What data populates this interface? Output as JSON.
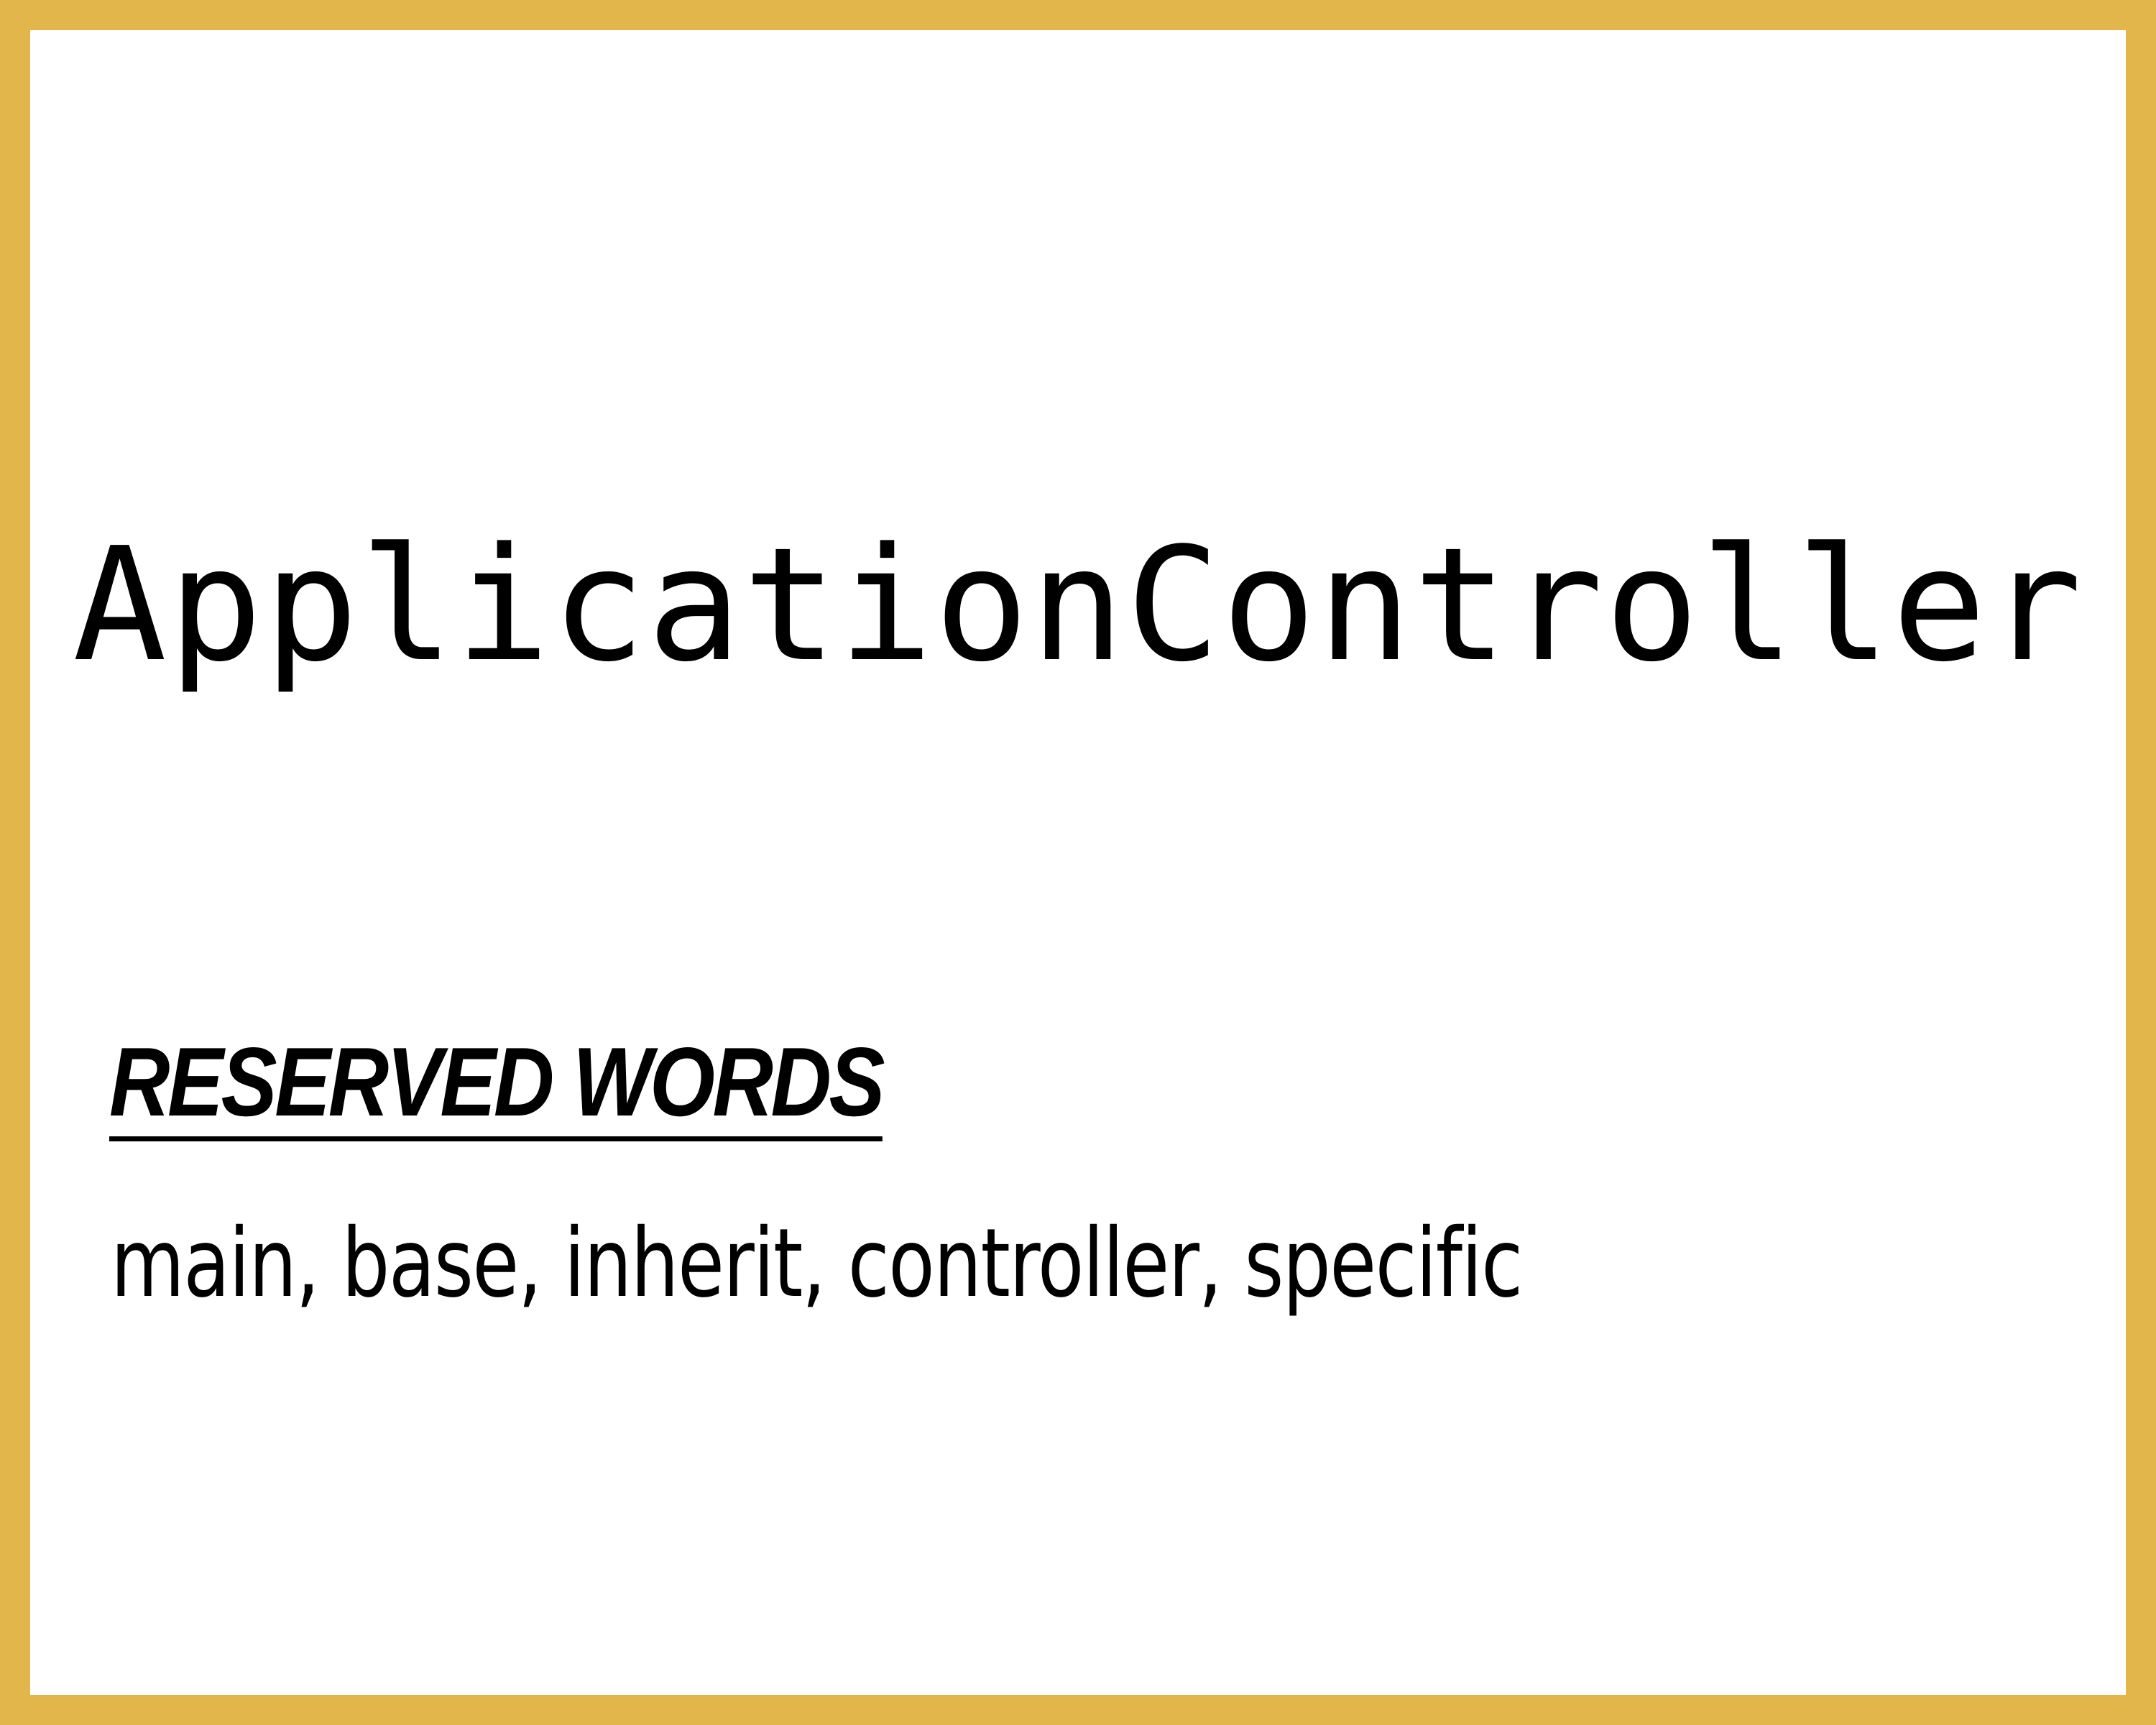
{
  "card": {
    "term": "ApplicationController",
    "reserved_heading": "RESERVED WORDS",
    "reserved_words": "main, base, inherit, controller, specific"
  },
  "colors": {
    "frame": "#e3b64b",
    "background": "#ffffff",
    "text": "#000000"
  }
}
